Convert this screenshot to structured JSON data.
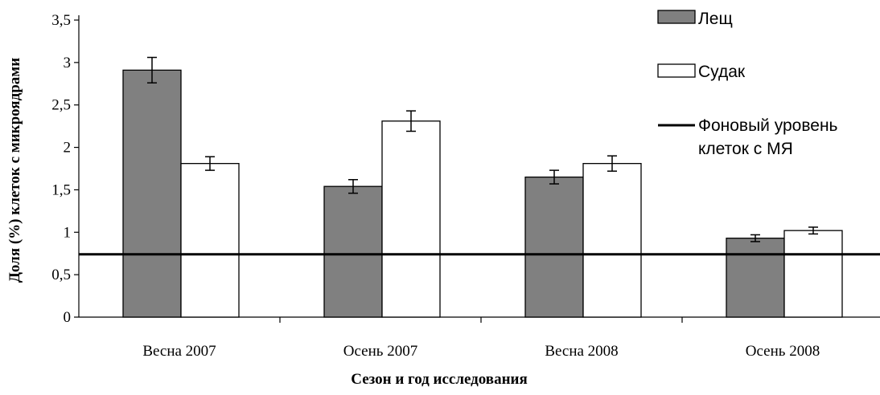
{
  "chart_data": {
    "type": "bar",
    "categories": [
      "Весна 2007",
      "Осень 2007",
      "Весна 2008",
      "Осень 2008"
    ],
    "series": [
      {
        "name": "Лещ",
        "color": "#808080",
        "values": [
          2.91,
          1.54,
          1.65,
          0.93
        ],
        "errors": [
          0.15,
          0.08,
          0.08,
          0.04
        ]
      },
      {
        "name": "Судак",
        "color": "#ffffff",
        "values": [
          1.81,
          2.31,
          1.81,
          1.02
        ],
        "errors": [
          0.08,
          0.12,
          0.09,
          0.04
        ]
      }
    ],
    "reference_line": {
      "label_line1": "Фоновый уровень",
      "label_line2": "клеток с МЯ",
      "value": 0.74,
      "color": "#000000"
    },
    "ylim": [
      0,
      3.5
    ],
    "yticks": [
      "0",
      "0,5",
      "1",
      "1,5",
      "2",
      "2,5",
      "3",
      "3,5"
    ],
    "ytick_values": [
      0,
      0.5,
      1,
      1.5,
      2,
      2.5,
      3,
      3.5
    ],
    "xlabel": "Сезон и год исследования",
    "ylabel": "Доля (%) клеток с микроядрами",
    "grid": false,
    "legend_position": "top-right"
  }
}
